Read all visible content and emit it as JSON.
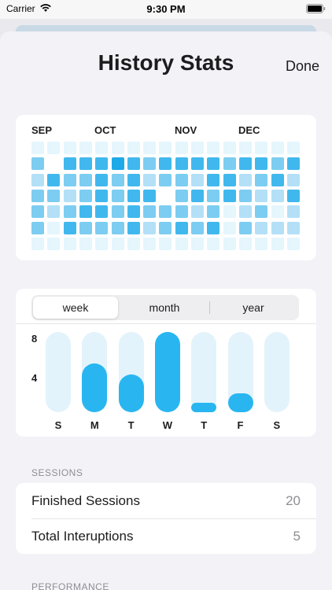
{
  "status_bar": {
    "carrier": "Carrier",
    "time": "9:30 PM"
  },
  "sheet": {
    "title": "History Stats",
    "done_label": "Done"
  },
  "heatmap": {
    "months": [
      "SEP",
      "OCT",
      "NOV",
      "DEC"
    ],
    "columns": 17,
    "rows": 7,
    "levels": [
      [
        1,
        1,
        1,
        1,
        1,
        1,
        1,
        1,
        1,
        1,
        1,
        1,
        1,
        1,
        1,
        1,
        1
      ],
      [
        3,
        0,
        4,
        4,
        4,
        5,
        4,
        3,
        4,
        4,
        4,
        4,
        3,
        4,
        4,
        3,
        4
      ],
      [
        2,
        4,
        3,
        3,
        4,
        3,
        4,
        2,
        3,
        3,
        2,
        4,
        4,
        2,
        3,
        4,
        2
      ],
      [
        3,
        3,
        2,
        3,
        4,
        3,
        4,
        4,
        0,
        3,
        4,
        3,
        4,
        3,
        2,
        2,
        4
      ],
      [
        3,
        2,
        3,
        4,
        4,
        3,
        4,
        3,
        3,
        3,
        2,
        3,
        1,
        2,
        3,
        1,
        2
      ],
      [
        3,
        1,
        4,
        3,
        3,
        3,
        4,
        2,
        3,
        4,
        3,
        4,
        1,
        3,
        2,
        2,
        2
      ],
      [
        1,
        1,
        1,
        1,
        1,
        1,
        1,
        1,
        1,
        1,
        1,
        1,
        1,
        1,
        1,
        1,
        1
      ]
    ],
    "colors": [
      "#ffffff",
      "#e5f6fd",
      "#b3e0f7",
      "#7ccdf1",
      "#40b8ee",
      "#1ea9e9"
    ]
  },
  "segmented": {
    "options": [
      "week",
      "month",
      "year"
    ],
    "selected": 0
  },
  "chart_data": {
    "type": "bar",
    "categories": [
      "S",
      "M",
      "T",
      "W",
      "T",
      "F",
      "S"
    ],
    "values": [
      0,
      5.2,
      4,
      8.5,
      0.8,
      2,
      0
    ],
    "y_ticks": [
      "8",
      "4"
    ],
    "ylim": [
      0,
      8.5
    ],
    "colors": {
      "fill": "#29b6f0",
      "track": "#e3f3fb"
    }
  },
  "sessions": {
    "header": "SESSIONS",
    "rows": [
      {
        "label": "Finished Sessions",
        "value": "20"
      },
      {
        "label": "Total Interuptions",
        "value": "5"
      }
    ]
  },
  "performance": {
    "header": "PERFORMANCE"
  }
}
